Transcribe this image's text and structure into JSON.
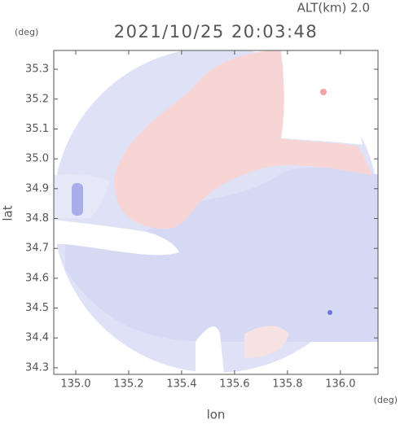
{
  "chart_data": {
    "type": "map",
    "title": "2021/10/25 20:03:48",
    "altitude": "ALT(km) 2.0",
    "y_unit": "(deg)",
    "x_unit": "(deg)",
    "xlabel": "lon",
    "ylabel": "lat",
    "xlim": [
      134.917,
      136.142
    ],
    "ylim": [
      34.278,
      35.363
    ],
    "xticks": [
      {
        "value": 135,
        "label": "135.0"
      },
      135.2,
      135.4,
      135.6,
      135.8,
      {
        "value": 136,
        "label": "136.0"
      }
    ],
    "yticks": [
      34.3,
      34.4,
      34.5,
      34.6,
      34.7,
      34.8,
      34.9,
      {
        "value": 35,
        "label": "35.0"
      },
      35.1,
      35.2,
      35.3
    ]
  }
}
